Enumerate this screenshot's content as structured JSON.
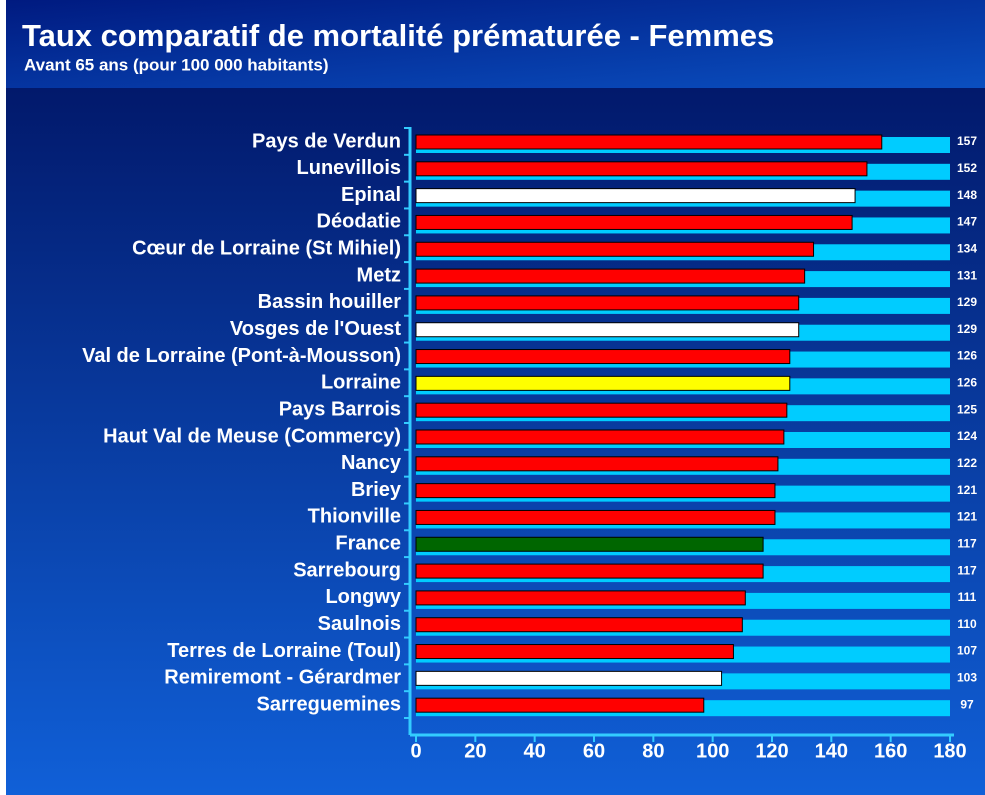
{
  "chart_data": {
    "type": "bar",
    "orientation": "horizontal",
    "title": "Taux comparatif de mortalité prématurée - Femmes",
    "subtitle": "Avant 65 ans (pour 100 000 habitants)",
    "categories": [
      "Pays de Verdun",
      "Lunevillois",
      "Epinal",
      "Déodatie",
      "Cœur de Lorraine (St Mihiel)",
      "Metz",
      "Bassin houiller",
      "Vosges de l'Ouest",
      "Val de Lorraine (Pont-à-Mousson)",
      "Lorraine",
      "Pays Barrois",
      "Haut Val de Meuse (Commercy)",
      "Nancy",
      "Briey",
      "Thionville",
      "France",
      "Sarrebourg",
      "Longwy",
      "Saulnois",
      "Terres de Lorraine (Toul)",
      "Remiremont - Gérardmer",
      "Sarreguemines"
    ],
    "values": [
      157,
      152,
      148,
      147,
      134,
      131,
      129,
      129,
      126,
      126,
      125,
      124,
      122,
      121,
      121,
      117,
      117,
      111,
      110,
      107,
      103,
      97
    ],
    "colors": [
      "#ff0000",
      "#ff0000",
      "#ffffff",
      "#ff0000",
      "#ff0000",
      "#ff0000",
      "#ff0000",
      "#ffffff",
      "#ff0000",
      "#ffff00",
      "#ff0000",
      "#ff0000",
      "#ff0000",
      "#ff0000",
      "#ff0000",
      "#006600",
      "#ff0000",
      "#ff0000",
      "#ff0000",
      "#ff0000",
      "#ffffff",
      "#ff0000"
    ],
    "xlim": [
      0,
      180
    ],
    "xticks": [
      0,
      20,
      40,
      60,
      80,
      100,
      120,
      140,
      160,
      180
    ],
    "grid": false
  }
}
